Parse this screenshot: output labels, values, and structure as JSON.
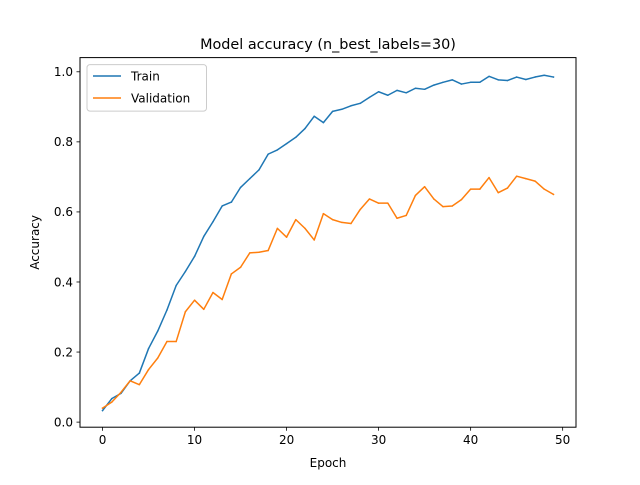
{
  "chart_data": {
    "type": "line",
    "title": "Model accuracy (n_best_labels=30)",
    "xlabel": "Epoch",
    "ylabel": "Accuracy",
    "xlim": [
      -2.45,
      51.45
    ],
    "ylim": [
      -0.0145,
      1.0405
    ],
    "xticks": [
      0,
      10,
      20,
      30,
      40,
      50
    ],
    "xtick_labels": [
      "0",
      "10",
      "20",
      "30",
      "40",
      "50"
    ],
    "yticks": [
      0.0,
      0.2,
      0.4,
      0.6,
      0.8,
      1.0
    ],
    "ytick_labels": [
      "0.0",
      "0.2",
      "0.4",
      "0.6",
      "0.8",
      "1.0"
    ],
    "grid": false,
    "legend_position": "top-left",
    "x": [
      0,
      1,
      2,
      3,
      4,
      5,
      6,
      7,
      8,
      9,
      10,
      11,
      12,
      13,
      14,
      15,
      16,
      17,
      18,
      19,
      20,
      21,
      22,
      23,
      24,
      25,
      26,
      27,
      28,
      29,
      30,
      31,
      32,
      33,
      34,
      35,
      36,
      37,
      38,
      39,
      40,
      41,
      42,
      43,
      44,
      45,
      46,
      47,
      48,
      49
    ],
    "series": [
      {
        "name": "Train",
        "color": "#1f77b4",
        "values": [
          0.033,
          0.067,
          0.082,
          0.118,
          0.14,
          0.21,
          0.26,
          0.32,
          0.39,
          0.43,
          0.473,
          0.53,
          0.572,
          0.617,
          0.628,
          0.67,
          0.695,
          0.72,
          0.765,
          0.777,
          0.795,
          0.813,
          0.838,
          0.873,
          0.855,
          0.887,
          0.893,
          0.903,
          0.91,
          0.927,
          0.943,
          0.933,
          0.947,
          0.94,
          0.953,
          0.95,
          0.962,
          0.97,
          0.977,
          0.965,
          0.97,
          0.97,
          0.987,
          0.977,
          0.975,
          0.985,
          0.978,
          0.985,
          0.99,
          0.985
        ]
      },
      {
        "name": "Validation",
        "color": "#ff7f0e",
        "values": [
          0.04,
          0.057,
          0.085,
          0.118,
          0.107,
          0.15,
          0.183,
          0.23,
          0.23,
          0.315,
          0.348,
          0.322,
          0.37,
          0.35,
          0.423,
          0.442,
          0.483,
          0.485,
          0.49,
          0.553,
          0.528,
          0.578,
          0.553,
          0.52,
          0.595,
          0.578,
          0.57,
          0.567,
          0.607,
          0.637,
          0.625,
          0.625,
          0.582,
          0.59,
          0.647,
          0.672,
          0.637,
          0.615,
          0.617,
          0.635,
          0.665,
          0.665,
          0.698,
          0.655,
          0.668,
          0.702,
          0.695,
          0.688,
          0.665,
          0.65
        ]
      }
    ]
  }
}
